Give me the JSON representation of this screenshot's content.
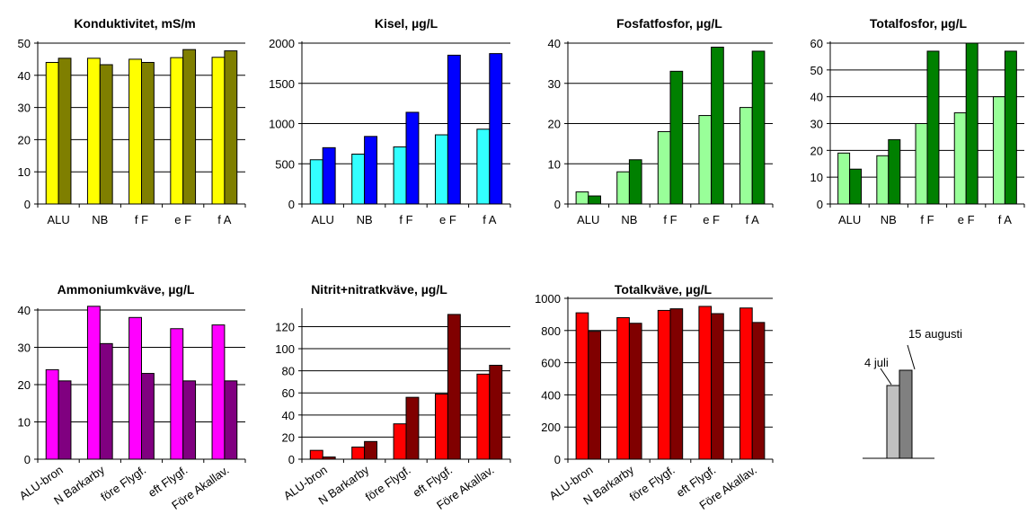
{
  "chart_data": [
    {
      "type": "bar",
      "title": "Konduktivitet, mS/m",
      "categories": [
        "ALU",
        "NB",
        "f F",
        "e F",
        "f A"
      ],
      "ylim": [
        0,
        50
      ],
      "yticks": [
        0,
        10,
        20,
        30,
        40,
        50
      ],
      "series": [
        {
          "values": [
            44,
            45.3,
            45,
            45.5,
            45.6
          ],
          "color": "#ffff00"
        },
        {
          "values": [
            45.3,
            43.3,
            44,
            48,
            47.6
          ],
          "color": "#7f7f00"
        }
      ]
    },
    {
      "type": "bar",
      "title": "Kisel, µg/L",
      "categories": [
        "ALU",
        "NB",
        "f F",
        "e F",
        "f A"
      ],
      "ylim": [
        0,
        2000
      ],
      "yticks": [
        0,
        500,
        1000,
        1500,
        2000
      ],
      "series": [
        {
          "values": [
            550,
            620,
            710,
            860,
            930
          ],
          "color": "#33ffff"
        },
        {
          "values": [
            700,
            840,
            1140,
            1850,
            1870
          ],
          "color": "#0000ff"
        }
      ]
    },
    {
      "type": "bar",
      "title": "Fosfatfosfor, µg/L",
      "categories": [
        "ALU",
        "NB",
        "f F",
        "e F",
        "f A"
      ],
      "ylim": [
        0,
        40
      ],
      "yticks": [
        0,
        10,
        20,
        30,
        40
      ],
      "series": [
        {
          "values": [
            3,
            8,
            18,
            22,
            24
          ],
          "color": "#99ff99"
        },
        {
          "values": [
            2,
            11,
            33,
            39,
            38
          ],
          "color": "#008000"
        }
      ]
    },
    {
      "type": "bar",
      "title": "Totalfosfor, µg/L",
      "categories": [
        "ALU",
        "NB",
        "f F",
        "e F",
        "f A"
      ],
      "ylim": [
        0,
        60
      ],
      "yticks": [
        0,
        10,
        20,
        30,
        40,
        50,
        60
      ],
      "series": [
        {
          "values": [
            19,
            18,
            30,
            34,
            40
          ],
          "color": "#99ff99"
        },
        {
          "values": [
            13,
            24,
            57,
            60,
            57
          ],
          "color": "#008000"
        }
      ]
    },
    {
      "type": "bar",
      "title": "Ammoniumkväve, µg/L",
      "categories": [
        "ALU-bron",
        "N Barkarby",
        "före Flygf.",
        "eft Flygf.",
        "Före Akallav."
      ],
      "ylim": [
        0,
        40
      ],
      "yticks": [
        0,
        10,
        20,
        30,
        40
      ],
      "series": [
        {
          "values": [
            24,
            41,
            38,
            35,
            36
          ],
          "color": "#ff00ff"
        },
        {
          "values": [
            21,
            31,
            23,
            21,
            21
          ],
          "color": "#800080"
        }
      ]
    },
    {
      "type": "bar",
      "title": "Nitrit+nitratkväve, µg/L",
      "categories": [
        "ALU-bron",
        "N Barkarby",
        "före Flygf.",
        "eft Flygf.",
        "Före Akallav."
      ],
      "ylim": [
        0,
        135
      ],
      "yticks": [
        0,
        20,
        40,
        60,
        80,
        100,
        120
      ],
      "series": [
        {
          "values": [
            8,
            11,
            32,
            59,
            77
          ],
          "color": "#ff0000"
        },
        {
          "values": [
            2,
            16,
            56,
            131,
            85
          ],
          "color": "#800000"
        }
      ]
    },
    {
      "type": "bar",
      "title": "Totalkväve, µg/L",
      "categories": [
        "ALU-bron",
        "N Barkarby",
        "före Flygf.",
        "eft Flygf.",
        "Före Akallav."
      ],
      "ylim": [
        0,
        1000
      ],
      "yticks": [
        0,
        200,
        400,
        600,
        800,
        1000
      ],
      "series": [
        {
          "values": [
            910,
            880,
            925,
            950,
            940
          ],
          "color": "#ff0000"
        },
        {
          "values": [
            795,
            845,
            935,
            905,
            850
          ],
          "color": "#800000"
        }
      ]
    }
  ],
  "legend": {
    "labels": [
      "4 juli",
      "15 augusti"
    ],
    "colors": [
      "#c0c0c0",
      "#808080"
    ]
  }
}
